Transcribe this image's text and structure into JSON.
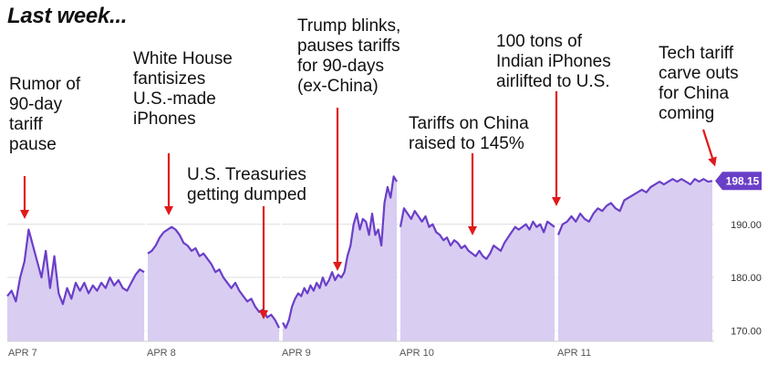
{
  "title": "Last week...",
  "annotations": [
    {
      "id": "rumor",
      "text": "Rumor of\n90-day\ntariff\npause"
    },
    {
      "id": "whitehouse",
      "text": "White House\nfantisizes\nU.S.-made\niPhones"
    },
    {
      "id": "treasuries",
      "text": "U.S. Treasuries\ngetting dumped"
    },
    {
      "id": "trump",
      "text": "Trump blinks,\npauses tariffs\nfor 90-days\n(ex-China)"
    },
    {
      "id": "china145",
      "text": "Tariffs on China\nraised to 145%"
    },
    {
      "id": "iphones",
      "text": "100 tons of\nIndian iPhones\nairlifted to U.S."
    },
    {
      "id": "carveouts",
      "text": "Tech tariff\ncarve outs\nfor China\ncoming"
    }
  ],
  "colors": {
    "line": "#6a3fc8",
    "fill": "#d9cdf2",
    "arrow": "#e0191a",
    "badge": "#6a3fc8",
    "grid": "#dddddd"
  },
  "chart_data": {
    "type": "area",
    "title": "",
    "xlabel": "",
    "ylabel": "",
    "ylim": [
      168,
      203
    ],
    "yticks": [
      "170.00",
      "180.00",
      "190.00"
    ],
    "last_value_label": "198.15",
    "grid": true,
    "x_ticks": [
      "APR 7",
      "APR 8",
      "APR 9",
      "APR 10",
      "APR 11"
    ],
    "days": [
      {
        "label": "APR 7",
        "values": [
          176.5,
          177.5,
          175.5,
          180,
          183,
          189,
          186,
          183,
          180,
          185,
          178,
          184,
          177,
          175,
          178,
          176,
          179,
          177.5,
          179,
          177,
          178.5,
          177.5,
          179,
          178,
          180,
          178.5,
          179.5,
          178,
          177.5,
          179,
          180.5,
          181.5,
          181
        ]
      },
      {
        "label": "APR 8",
        "values": [
          184.5,
          185,
          186,
          187.5,
          188.5,
          189,
          189.5,
          189,
          188,
          186.5,
          186,
          185,
          185.5,
          184,
          184.5,
          183.5,
          182.5,
          181,
          181.5,
          180,
          179,
          178,
          179,
          177.5,
          176.5,
          175.5,
          176,
          174.5,
          173.5,
          174,
          172.5,
          173,
          172,
          170.5
        ]
      },
      {
        "label": "APR 9",
        "values": [
          171.5,
          170.5,
          172,
          174.5,
          176,
          177,
          176.5,
          178,
          177,
          178.5,
          177.5,
          179,
          178,
          180,
          178.5,
          179.5,
          181,
          179.5,
          180.5,
          180,
          181,
          184,
          186,
          190,
          192,
          189,
          191,
          190.5,
          188,
          192,
          188,
          189,
          186,
          194,
          197,
          195,
          199,
          198
        ]
      },
      {
        "label": "APR 10",
        "values": [
          189.5,
          193,
          192,
          191,
          192.5,
          191.5,
          190.5,
          191.5,
          189.5,
          190,
          188.5,
          188,
          187,
          187.5,
          186,
          187,
          186.5,
          185.5,
          186,
          185,
          184.5,
          184,
          185,
          184,
          183.5,
          184.5,
          186,
          185.5,
          185,
          186.5,
          187.5,
          188.5,
          189.5,
          189,
          189.5,
          190,
          189,
          190.5,
          189.5,
          190,
          188.5,
          190.5,
          190,
          189.5
        ]
      },
      {
        "label": "APR 11",
        "values": [
          188,
          190,
          190.5,
          191.5,
          190.5,
          192,
          191,
          190.5,
          192,
          193,
          192.5,
          193.5,
          194,
          193,
          192.5,
          194.5,
          195,
          195.5,
          196,
          196.5,
          196,
          197,
          197.5,
          198,
          197.5,
          198,
          198.5,
          198,
          198.5,
          198,
          197.5,
          198.5,
          198,
          198.5,
          198,
          198.15
        ]
      }
    ]
  }
}
